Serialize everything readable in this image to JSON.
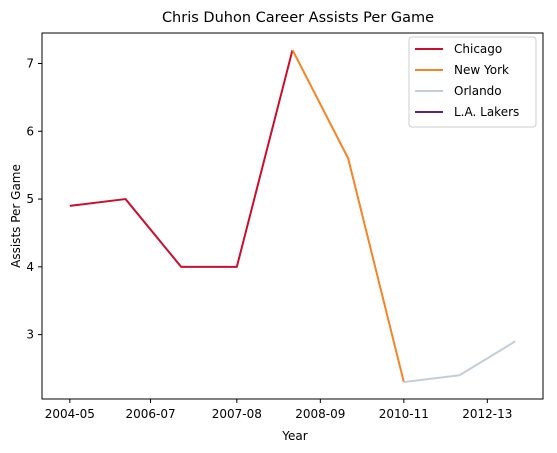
{
  "chart_data": {
    "type": "line",
    "title": "Chris Duhon Career Assists Per Game",
    "xlabel": "Year",
    "ylabel": "Assists Per Game",
    "x_tick_labels": [
      "2004-05",
      "2006-07",
      "2007-08",
      "2008-09",
      "2010-11",
      "2012-13"
    ],
    "y_ticks": [
      3,
      4,
      5,
      6,
      7
    ],
    "ylim": [
      2.05,
      7.45
    ],
    "legend_position": "top-right",
    "series": [
      {
        "name": "Chicago",
        "color": "#C8102E",
        "points": [
          [
            0,
            4.9
          ],
          [
            1,
            5.0
          ],
          [
            2,
            4.0
          ],
          [
            3,
            4.0
          ],
          [
            4,
            7.2
          ]
        ]
      },
      {
        "name": "New York",
        "color": "#F58426",
        "points": [
          [
            4,
            7.2
          ],
          [
            5,
            5.6
          ],
          [
            6,
            2.3
          ]
        ]
      },
      {
        "name": "Orlando",
        "color": "#C4CED4",
        "points": [
          [
            6,
            2.3
          ],
          [
            7,
            2.4
          ],
          [
            8,
            2.9
          ]
        ]
      },
      {
        "name": "L.A. Lakers",
        "color": "#552583",
        "points": []
      }
    ]
  }
}
